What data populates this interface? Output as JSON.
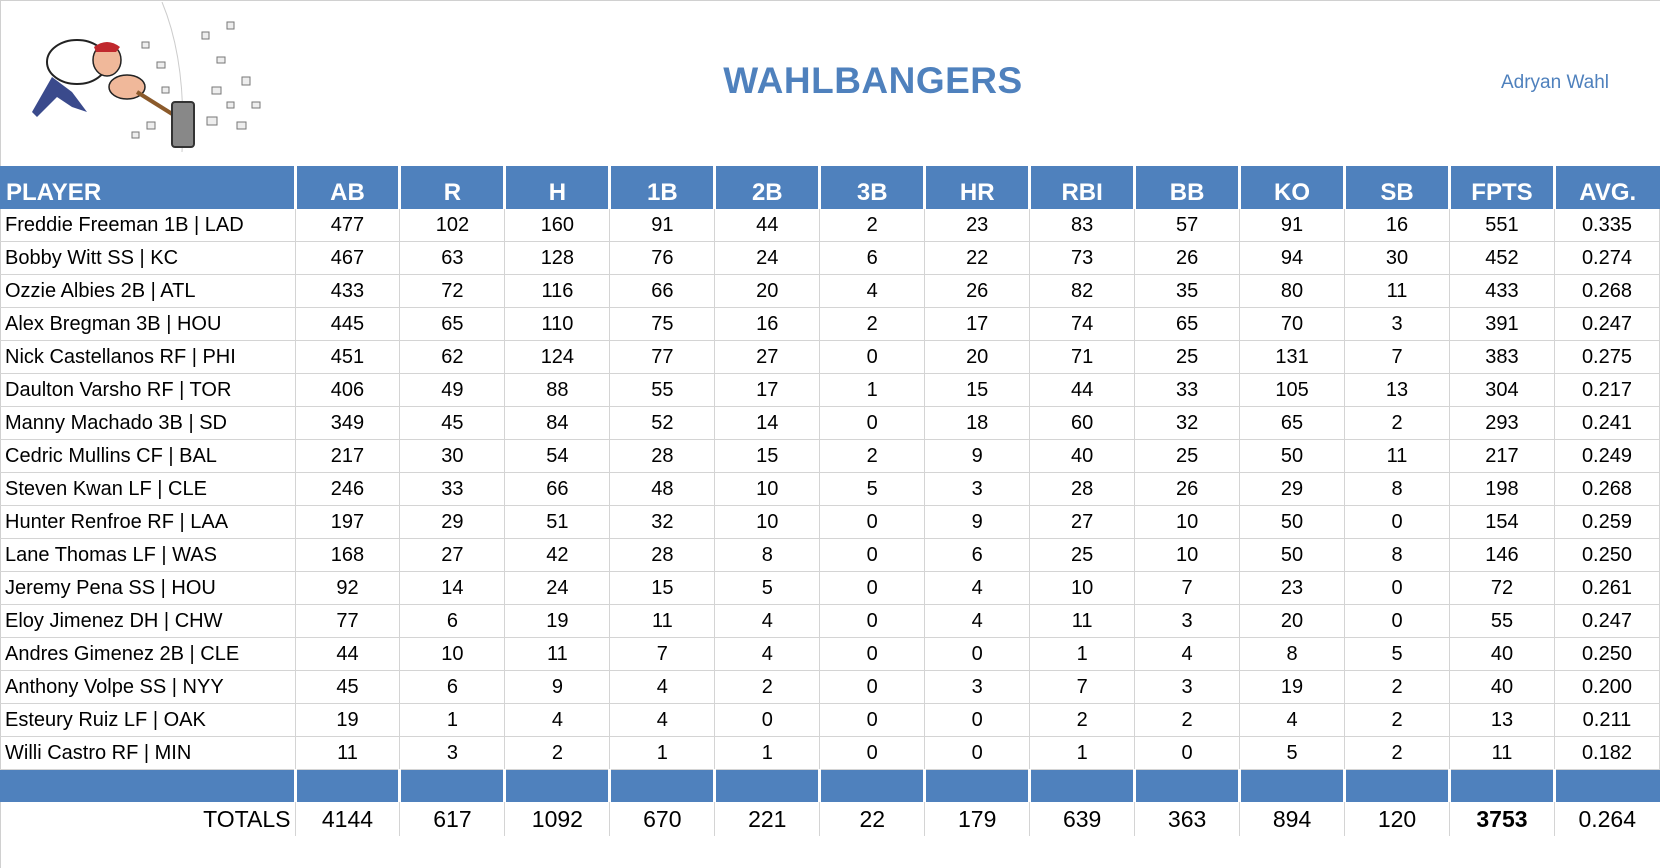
{
  "header": {
    "title": "WAHLBANGERS",
    "owner": "Adryan Wahl",
    "logo_icon": "cartoon-hammer-smashing-logo"
  },
  "colors": {
    "accent": "#4f81bd",
    "grid": "#d4d4d4"
  },
  "table": {
    "columns": [
      "PLAYER",
      "AB",
      "R",
      "H",
      "1B",
      "2B",
      "3B",
      "HR",
      "RBI",
      "BB",
      "KO",
      "SB",
      "FPTS",
      "AVG."
    ],
    "rows": [
      [
        "Freddie Freeman 1B | LAD",
        "477",
        "102",
        "160",
        "91",
        "44",
        "2",
        "23",
        "83",
        "57",
        "91",
        "16",
        "551",
        "0.335"
      ],
      [
        "Bobby Witt SS | KC",
        "467",
        "63",
        "128",
        "76",
        "24",
        "6",
        "22",
        "73",
        "26",
        "94",
        "30",
        "452",
        "0.274"
      ],
      [
        "Ozzie Albies 2B | ATL",
        "433",
        "72",
        "116",
        "66",
        "20",
        "4",
        "26",
        "82",
        "35",
        "80",
        "11",
        "433",
        "0.268"
      ],
      [
        "Alex Bregman 3B | HOU",
        "445",
        "65",
        "110",
        "75",
        "16",
        "2",
        "17",
        "74",
        "65",
        "70",
        "3",
        "391",
        "0.247"
      ],
      [
        "Nick Castellanos RF | PHI",
        "451",
        "62",
        "124",
        "77",
        "27",
        "0",
        "20",
        "71",
        "25",
        "131",
        "7",
        "383",
        "0.275"
      ],
      [
        "Daulton Varsho RF | TOR",
        "406",
        "49",
        "88",
        "55",
        "17",
        "1",
        "15",
        "44",
        "33",
        "105",
        "13",
        "304",
        "0.217"
      ],
      [
        "Manny Machado 3B | SD",
        "349",
        "45",
        "84",
        "52",
        "14",
        "0",
        "18",
        "60",
        "32",
        "65",
        "2",
        "293",
        "0.241"
      ],
      [
        "Cedric Mullins CF | BAL",
        "217",
        "30",
        "54",
        "28",
        "15",
        "2",
        "9",
        "40",
        "25",
        "50",
        "11",
        "217",
        "0.249"
      ],
      [
        "Steven Kwan LF | CLE",
        "246",
        "33",
        "66",
        "48",
        "10",
        "5",
        "3",
        "28",
        "26",
        "29",
        "8",
        "198",
        "0.268"
      ],
      [
        "Hunter Renfroe RF | LAA",
        "197",
        "29",
        "51",
        "32",
        "10",
        "0",
        "9",
        "27",
        "10",
        "50",
        "0",
        "154",
        "0.259"
      ],
      [
        "Lane Thomas LF | WAS",
        "168",
        "27",
        "42",
        "28",
        "8",
        "0",
        "6",
        "25",
        "10",
        "50",
        "8",
        "146",
        "0.250"
      ],
      [
        "Jeremy Pena SS | HOU",
        "92",
        "14",
        "24",
        "15",
        "5",
        "0",
        "4",
        "10",
        "7",
        "23",
        "0",
        "72",
        "0.261"
      ],
      [
        "Eloy Jimenez DH | CHW",
        "77",
        "6",
        "19",
        "11",
        "4",
        "0",
        "4",
        "11",
        "3",
        "20",
        "0",
        "55",
        "0.247"
      ],
      [
        "Andres Gimenez 2B | CLE",
        "44",
        "10",
        "11",
        "7",
        "4",
        "0",
        "0",
        "1",
        "4",
        "8",
        "5",
        "40",
        "0.250"
      ],
      [
        "Anthony Volpe SS | NYY",
        "45",
        "6",
        "9",
        "4",
        "2",
        "0",
        "3",
        "7",
        "3",
        "19",
        "2",
        "40",
        "0.200"
      ],
      [
        "Esteury Ruiz LF | OAK",
        "19",
        "1",
        "4",
        "4",
        "0",
        "0",
        "0",
        "2",
        "2",
        "4",
        "2",
        "13",
        "0.211"
      ],
      [
        "Willi Castro RF | MIN",
        "11",
        "3",
        "2",
        "1",
        "1",
        "0",
        "0",
        "1",
        "0",
        "5",
        "2",
        "11",
        "0.182"
      ]
    ],
    "totals": [
      "TOTALS",
      "4144",
      "617",
      "1092",
      "670",
      "221",
      "22",
      "179",
      "639",
      "363",
      "894",
      "120",
      "3753",
      "0.264"
    ]
  }
}
